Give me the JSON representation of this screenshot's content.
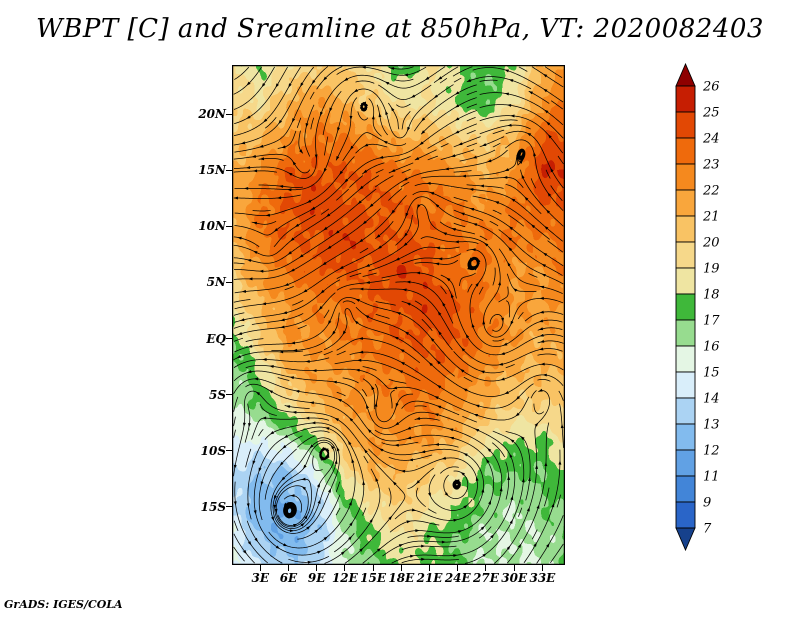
{
  "title": "WBPT [C] and Sreamline at 850hPa, VT: 2020082403",
  "attribution": "GrADS: IGES/COLA",
  "chart_data": {
    "type": "heatmap",
    "field_name": "WBPT [C]",
    "overlay": "streamlines",
    "pressure_level": "850hPa",
    "valid_time": "2020082403",
    "x_axis": {
      "lon_min": 0,
      "lon_max": 35.4,
      "ticks": [
        {
          "label": "3E",
          "value": 3
        },
        {
          "label": "6E",
          "value": 6
        },
        {
          "label": "9E",
          "value": 9
        },
        {
          "label": "12E",
          "value": 12
        },
        {
          "label": "15E",
          "value": 15
        },
        {
          "label": "18E",
          "value": 18
        },
        {
          "label": "21E",
          "value": 21
        },
        {
          "label": "24E",
          "value": 24
        },
        {
          "label": "27E",
          "value": 27
        },
        {
          "label": "30E",
          "value": 30
        },
        {
          "label": "33E",
          "value": 33
        }
      ]
    },
    "y_axis": {
      "lat_min": -20.2,
      "lat_max": 24.4,
      "ticks": [
        {
          "label": "20N",
          "value": 20
        },
        {
          "label": "15N",
          "value": 15
        },
        {
          "label": "10N",
          "value": 10
        },
        {
          "label": "5N",
          "value": 5
        },
        {
          "label": "EQ",
          "value": 0
        },
        {
          "label": "5S",
          "value": -5
        },
        {
          "label": "10S",
          "value": -10
        },
        {
          "label": "15S",
          "value": -15
        }
      ]
    },
    "colorbar": {
      "levels": [
        7,
        9,
        11,
        12,
        13,
        14,
        15,
        16,
        17,
        18,
        19,
        20,
        21,
        22,
        23,
        24,
        25,
        26
      ],
      "colors_low_to_high": [
        "#16418c",
        "#2a65c8",
        "#4285d8",
        "#61a1e4",
        "#82bbee",
        "#abd3f3",
        "#d9eefa",
        "#e4f6e4",
        "#97dc8f",
        "#3fb83a",
        "#efe5a2",
        "#f6d88a",
        "#f9c364",
        "#f9a63c",
        "#f5891e",
        "#ef6a0c",
        "#e24804",
        "#c61e02",
        "#8e0000"
      ]
    },
    "grid": {
      "lons": [
        0,
        3,
        6,
        9,
        12,
        15,
        18,
        21,
        24,
        27,
        30,
        33,
        35.4
      ],
      "lats": [
        24.4,
        21,
        18,
        15,
        12,
        9,
        6,
        3,
        0,
        -3,
        -6,
        -9,
        -12,
        -15,
        -17.5,
        -20.2
      ],
      "wbpt": [
        [
          19,
          18,
          19,
          20,
          20,
          19,
          17,
          19,
          18,
          17,
          18,
          21,
          22
        ],
        [
          20,
          19,
          21,
          22,
          21,
          20,
          19,
          19,
          18,
          17,
          19,
          22,
          23
        ],
        [
          20,
          21,
          22,
          23,
          23,
          22,
          21,
          21,
          20,
          20,
          21,
          24,
          24
        ],
        [
          21,
          22,
          24,
          24,
          24,
          24,
          23,
          23,
          22,
          21,
          22,
          25,
          25
        ],
        [
          21,
          23,
          24,
          25,
          24,
          24,
          24,
          23,
          23,
          22,
          23,
          24,
          24
        ],
        [
          21,
          23,
          24,
          24,
          25,
          24,
          24,
          24,
          23,
          23,
          23,
          23,
          23
        ],
        [
          20,
          22,
          23,
          24,
          24,
          24,
          25,
          24,
          23,
          23,
          22,
          22,
          23
        ],
        [
          19,
          21,
          22,
          23,
          23,
          24,
          24,
          25,
          24,
          23,
          22,
          22,
          22
        ],
        [
          17,
          20,
          22,
          22,
          23,
          23,
          24,
          24,
          24,
          23,
          22,
          21,
          22
        ],
        [
          16,
          18,
          21,
          22,
          22,
          23,
          23,
          24,
          23,
          22,
          21,
          21,
          21
        ],
        [
          16,
          17,
          19,
          21,
          22,
          22,
          23,
          23,
          22,
          21,
          20,
          20,
          20
        ],
        [
          15,
          15,
          16,
          18,
          21,
          22,
          22,
          22,
          21,
          19,
          18,
          18,
          19
        ],
        [
          14,
          13,
          13,
          15,
          19,
          21,
          21,
          20,
          19,
          17,
          17,
          17,
          18
        ],
        [
          14,
          12,
          12,
          13,
          17,
          19,
          20,
          19,
          18,
          17,
          16,
          17,
          17
        ],
        [
          15,
          13,
          12,
          13,
          16,
          18,
          19,
          18,
          17,
          16,
          16,
          16,
          17
        ],
        [
          15,
          14,
          13,
          14,
          16,
          17,
          18,
          18,
          17,
          16,
          16,
          16,
          17
        ]
      ]
    },
    "streamline_color": "#000000",
    "streamline_vortices": [
      [
        6,
        -15.5,
        1.8
      ],
      [
        2,
        -5,
        1.2
      ],
      [
        12,
        3,
        1.3
      ],
      [
        20,
        12,
        1.5
      ],
      [
        28,
        1,
        -1.2
      ],
      [
        31,
        17,
        1.3
      ],
      [
        16,
        -7,
        -1.1
      ],
      [
        8,
        15,
        -1.3
      ],
      [
        24,
        -13,
        1.2
      ],
      [
        33,
        -5,
        1.0
      ],
      [
        14,
        21,
        1.1
      ],
      [
        4,
        8,
        -1.0
      ],
      [
        10,
        -10,
        1.4
      ],
      [
        18,
        18,
        -1.0
      ],
      [
        26,
        7,
        1.1
      ]
    ]
  }
}
